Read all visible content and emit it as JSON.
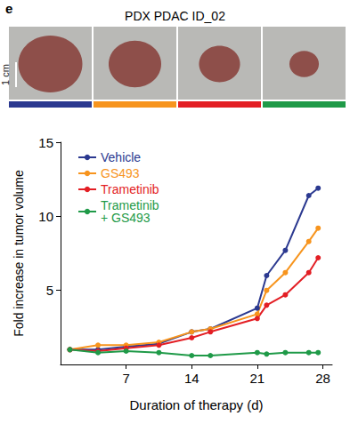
{
  "chart_data": {
    "type": "line",
    "title": "PDX PDAC ID_02",
    "annotations": [
      "e",
      "1 cm"
    ],
    "x_label": "Duration of therapy (d)",
    "y_label": "Fold increase in tumor volume",
    "x": [
      1,
      4,
      7,
      10.5,
      14,
      16,
      21,
      22,
      24,
      26.5,
      27.5
    ],
    "series": [
      {
        "name": "Vehicle",
        "color": "#2b3990",
        "values": [
          1,
          1.0,
          1.2,
          1.4,
          2.2,
          2.4,
          3.8,
          6.0,
          7.7,
          11.4,
          11.9
        ]
      },
      {
        "name": "GS493",
        "color": "#f7941d",
        "values": [
          1,
          1.3,
          1.3,
          1.5,
          2.2,
          2.4,
          3.4,
          5.0,
          6.2,
          8.3,
          9.2
        ]
      },
      {
        "name": "Trametinib",
        "color": "#e31e24",
        "values": [
          1,
          0.9,
          1.1,
          1.3,
          1.8,
          2.2,
          3.1,
          4.0,
          4.7,
          6.2,
          7.2
        ]
      },
      {
        "name": "Trametinib\n+ GS493",
        "color": "#1f9a48",
        "values": [
          1,
          0.8,
          0.9,
          0.8,
          0.6,
          0.6,
          0.8,
          0.7,
          0.8,
          0.8,
          0.8
        ]
      }
    ],
    "xlim": [
      0,
      29
    ],
    "xticks": [
      7,
      14,
      21,
      28
    ],
    "ylim": [
      0,
      15
    ],
    "yticks": [
      5,
      10,
      15
    ],
    "grid": false,
    "legend": "upper left",
    "marker": "circle"
  }
}
